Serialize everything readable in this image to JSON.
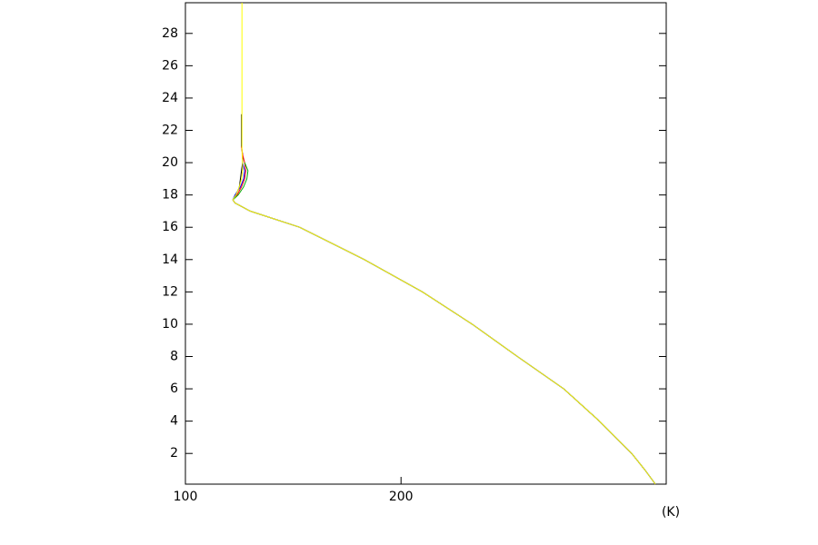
{
  "chart_data": {
    "type": "line",
    "x_label": "(K)",
    "y": [
      0.1,
      1,
      2,
      4,
      6,
      8,
      10,
      12,
      14,
      16,
      17,
      17.5,
      17.7,
      18,
      18.5,
      19,
      19.5,
      20,
      20.5,
      21,
      22,
      23,
      25,
      29.9
    ],
    "series": [
      {
        "color": "#000000",
        "values": [
          318,
          313,
          307,
          292,
          275.5,
          254,
          233,
          210,
          183,
          153,
          130,
          123,
          122,
          123.5,
          125,
          125.5,
          126,
          126.5,
          126.5,
          126,
          126,
          126,
          null,
          null
        ]
      },
      {
        "color": "#ff0000",
        "values": [
          318,
          313,
          307,
          292,
          275.5,
          254,
          233,
          210,
          183,
          153,
          130,
          123,
          122,
          124,
          126,
          127.5,
          128,
          127.5,
          126.5,
          126,
          null,
          null,
          null,
          null
        ]
      },
      {
        "color": "#00aa00",
        "values": [
          318,
          313,
          307,
          292,
          275.5,
          254,
          233,
          210,
          183,
          153,
          130,
          123,
          122,
          124.5,
          127,
          128.5,
          129,
          127.5,
          null,
          null,
          null,
          null,
          null,
          null
        ]
      },
      {
        "color": "#0000ff",
        "values": [
          318,
          313,
          307,
          292,
          275.5,
          254,
          233,
          210,
          183,
          153,
          130,
          123,
          122,
          123,
          125.5,
          127,
          127.5,
          126.5,
          null,
          null,
          null,
          null,
          null,
          null
        ]
      },
      {
        "color": "#ffff00",
        "values": [
          318,
          313,
          307,
          292,
          275.5,
          254,
          233,
          210,
          183,
          153,
          130,
          123,
          122,
          123.5,
          125,
          126,
          126.5,
          126.5,
          126.3,
          126.2,
          126.2,
          126.2,
          126.2,
          126.2
        ]
      }
    ],
    "xlim": [
      100,
      323
    ],
    "xticks": [
      100,
      200
    ],
    "ylim": [
      0.1,
      29.9
    ],
    "yticks": [
      2,
      4,
      6,
      8,
      10,
      12,
      14,
      16,
      18,
      20,
      22,
      24,
      26,
      28
    ]
  }
}
